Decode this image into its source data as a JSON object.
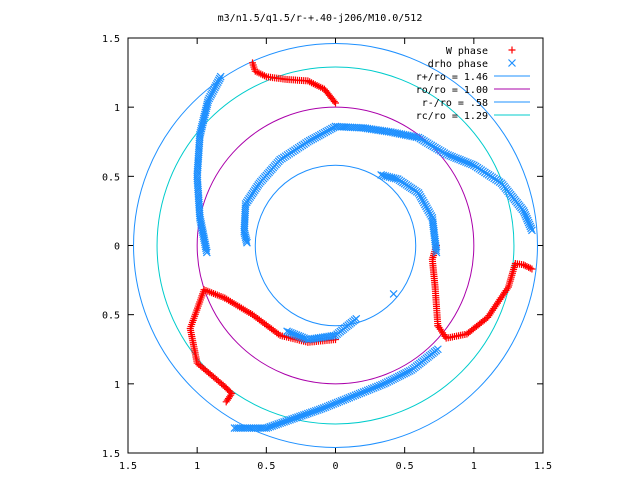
{
  "chart_data": {
    "type": "scatter",
    "title": "m3/n1.5/q1.5/r-+.40-j206/M10.0/512",
    "xlabel": "",
    "ylabel": "",
    "xlim": [
      -1.5,
      1.5
    ],
    "ylim": [
      -1.5,
      1.5
    ],
    "x_ticks": [
      -1.5,
      -1,
      -0.5,
      0,
      0.5,
      1,
      1.5
    ],
    "y_ticks": [
      -1.5,
      -1,
      -0.5,
      0,
      0.5,
      1,
      1.5
    ],
    "x_tick_labels": [
      "1.5",
      "1",
      "0.5",
      "0",
      "0.5",
      "1",
      "1.5"
    ],
    "y_tick_labels": [
      "1.5",
      "1",
      "0.5",
      "0",
      "0.5",
      "1",
      "1.5"
    ],
    "grid": false,
    "legend_position": "top-right",
    "series": [
      {
        "name": "W phase",
        "marker": "plus",
        "color": "#ff0000",
        "arms": [
          [
            [
              -0.6,
              1.32
            ],
            [
              -0.58,
              1.26
            ],
            [
              -0.5,
              1.22
            ],
            [
              -0.35,
              1.2
            ],
            [
              -0.2,
              1.19
            ],
            [
              -0.08,
              1.13
            ],
            [
              0.0,
              1.03
            ]
          ],
          [
            [
              1.42,
              -0.17
            ],
            [
              1.36,
              -0.14
            ],
            [
              1.3,
              -0.13
            ],
            [
              1.25,
              -0.3
            ],
            [
              1.1,
              -0.52
            ],
            [
              0.95,
              -0.64
            ],
            [
              0.8,
              -0.67
            ],
            [
              0.74,
              -0.58
            ]
          ],
          [
            [
              -0.79,
              -1.13
            ],
            [
              -0.75,
              -1.07
            ],
            [
              -0.8,
              -1.02
            ],
            [
              -1.0,
              -0.85
            ],
            [
              -1.05,
              -0.6
            ],
            [
              -0.95,
              -0.32
            ],
            [
              -0.8,
              -0.38
            ]
          ],
          [
            [
              -0.8,
              -0.38
            ],
            [
              -0.6,
              -0.5
            ],
            [
              -0.4,
              -0.65
            ],
            [
              -0.2,
              -0.7
            ],
            [
              0.0,
              -0.68
            ]
          ],
          [
            [
              0.74,
              -0.58
            ],
            [
              0.72,
              -0.3
            ],
            [
              0.7,
              -0.1
            ],
            [
              0.73,
              0.0
            ]
          ]
        ]
      },
      {
        "name": "drho phase",
        "marker": "cross",
        "color": "#1e90ff",
        "arms": [
          [
            [
              -0.83,
              1.22
            ],
            [
              -0.92,
              1.05
            ],
            [
              -0.98,
              0.8
            ],
            [
              -1.0,
              0.5
            ],
            [
              -0.98,
              0.2
            ],
            [
              -0.93,
              -0.05
            ]
          ],
          [
            [
              -0.73,
              -1.32
            ],
            [
              -0.5,
              -1.32
            ],
            [
              -0.3,
              -1.25
            ],
            [
              -0.1,
              -1.18
            ],
            [
              0.1,
              -1.1
            ],
            [
              0.35,
              -1.0
            ],
            [
              0.55,
              -0.9
            ],
            [
              0.74,
              -0.75
            ]
          ],
          [
            [
              1.42,
              0.11
            ],
            [
              1.36,
              0.25
            ],
            [
              1.2,
              0.45
            ],
            [
              1.0,
              0.58
            ],
            [
              0.8,
              0.66
            ],
            [
              0.6,
              0.78
            ],
            [
              0.4,
              0.82
            ],
            [
              0.2,
              0.85
            ],
            [
              0.0,
              0.86
            ]
          ],
          [
            [
              0.0,
              0.86
            ],
            [
              -0.2,
              0.75
            ],
            [
              -0.4,
              0.62
            ],
            [
              -0.55,
              0.45
            ],
            [
              -0.65,
              0.3
            ],
            [
              -0.66,
              0.1
            ],
            [
              -0.64,
              0.02
            ]
          ],
          [
            [
              0.33,
              0.51
            ],
            [
              0.45,
              0.48
            ],
            [
              0.6,
              0.38
            ],
            [
              0.7,
              0.2
            ],
            [
              0.73,
              -0.05
            ]
          ],
          [
            [
              0.15,
              -0.53
            ],
            [
              0.0,
              -0.65
            ],
            [
              -0.2,
              -0.68
            ],
            [
              -0.35,
              -0.62
            ]
          ],
          [
            [
              0.42,
              -0.35
            ]
          ]
        ]
      }
    ],
    "circles": [
      {
        "name": "r+/ro = 1.46",
        "r": 1.46,
        "color": "#1e90ff"
      },
      {
        "name": "ro/ro = 1.00",
        "r": 1.0,
        "color": "#aa00aa"
      },
      {
        "name": "r-/ro = .58",
        "r": 0.58,
        "color": "#1e90ff"
      },
      {
        "name": "rc/ro = 1.29",
        "r": 1.29,
        "color": "#00cccc"
      }
    ]
  }
}
